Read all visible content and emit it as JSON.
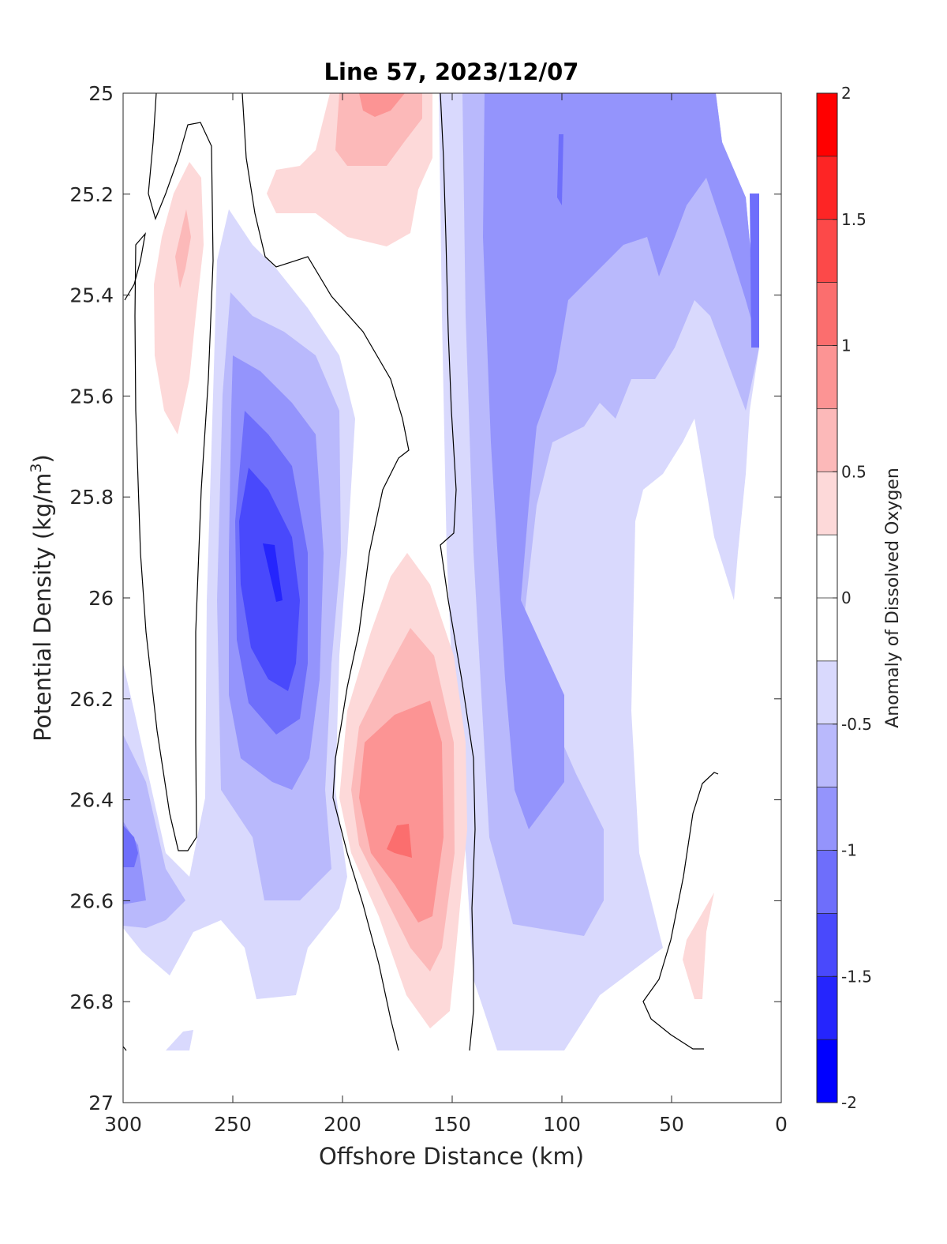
{
  "chart_data": {
    "type": "heatmap",
    "subtype": "filled-contour",
    "title": "Line 57, 2023/12/07",
    "xlabel": "Offshore Distance (km)",
    "ylabel_main": "Potential Density (kg/m",
    "ylabel_sup": "3",
    "ylabel_end": ")",
    "colorbar_label": "Anomaly of Dissolved Oxygen",
    "xlim": [
      300,
      0
    ],
    "x_reversed": true,
    "ylim": [
      25,
      27
    ],
    "y_reversed": true,
    "xticks": [
      "300",
      "250",
      "200",
      "150",
      "100",
      "50",
      "0"
    ],
    "yticks": [
      "25",
      "25.2",
      "25.4",
      "25.6",
      "25.8",
      "26",
      "26.2",
      "26.4",
      "26.6",
      "26.8",
      "27"
    ],
    "colorbar_ticks": [
      "2",
      "1.5",
      "1",
      "0.5",
      "0",
      "-0.5",
      "-1",
      "-1.5",
      "-2"
    ],
    "clim": [
      -2,
      2
    ],
    "contour_step": 0.25,
    "grid": false,
    "features": [
      {
        "name": "negative anomaly core",
        "x": 230,
        "y": 25.95,
        "value": -1.75
      },
      {
        "name": "positive anomaly core",
        "x": 172,
        "y": 26.48,
        "value": 1.0
      },
      {
        "name": "positive anomaly near surface",
        "x": 183,
        "y": 25.05,
        "value": 0.75
      },
      {
        "name": "positive anomaly upper left",
        "x": 275,
        "y": 25.35,
        "value": 0.75
      },
      {
        "name": "negative anomaly nearshore upper",
        "x": 100,
        "y": 25.3,
        "value": -1.0
      },
      {
        "name": "negative anomaly mid",
        "x": 110,
        "y": 26.2,
        "value": -1.0
      },
      {
        "name": "negative anomaly left deep",
        "x": 295,
        "y": 26.5,
        "value": -1.25
      },
      {
        "name": "positive anomaly nearshore deep",
        "x": 40,
        "y": 26.75,
        "value": 0.5
      }
    ]
  },
  "colors": {
    "pos": [
      "#fdd9d9",
      "#fcb9b9",
      "#fc9494",
      "#fb6e6e",
      "#fc4949",
      "#fd2525",
      "#ff0000"
    ],
    "neg": [
      "#d9d9fd",
      "#b9b9fc",
      "#9494fc",
      "#6e6efb",
      "#4949fc",
      "#2525fd",
      "#0000ff"
    ],
    "zero": "#ffffff"
  }
}
